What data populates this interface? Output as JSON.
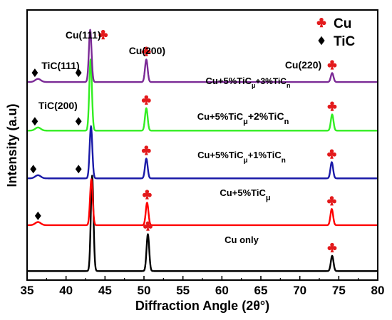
{
  "chart_data": {
    "type": "line",
    "xlabel": "Diffraction Angle (2θ°)",
    "ylabel": "Intensity (a.u)",
    "xlim": [
      35,
      80
    ],
    "x_ticks": [
      35,
      40,
      45,
      50,
      55,
      60,
      65,
      70,
      75,
      80
    ],
    "y_ticks_shown": false,
    "grid": false,
    "legend_position": "top-right",
    "legend": [
      {
        "symbol": "club",
        "label": "Cu",
        "color": "#e31a1c"
      },
      {
        "symbol": "diamond",
        "label": "TiC",
        "color": "#000000"
      }
    ],
    "peak_labels": [
      {
        "text": "Cu(111)",
        "x": 43.3
      },
      {
        "text": "Cu(200)",
        "x": 50.4
      },
      {
        "text": "Cu(220)",
        "x": 74.1
      },
      {
        "text": "TiC(111)",
        "x": 36.0
      },
      {
        "text": "TiC(200)",
        "x": 41.8
      }
    ],
    "series": [
      {
        "name": "Cu only",
        "label_base": "Cu only",
        "label_sub": "",
        "label_tail": "",
        "label_tail_sub": "",
        "color": "#000000",
        "baseline": 1.0,
        "peaks": [
          {
            "x": 43.35,
            "height": 10.6
          },
          {
            "x": 50.5,
            "height": 4.1
          },
          {
            "x": 74.15,
            "height": 1.7
          }
        ],
        "cu_markers": [
          50.5,
          74.15
        ],
        "tic_markers": []
      },
      {
        "name": "Cu+5%TiCμ",
        "label_base": "Cu+5%TiC",
        "label_sub": "μ",
        "label_tail": "",
        "label_tail_sub": "",
        "color": "#ff0000",
        "baseline": 6.1,
        "peaks": [
          {
            "x": 43.25,
            "height": 5.1
          },
          {
            "x": 50.4,
            "height": 2.5
          },
          {
            "x": 74.1,
            "height": 1.8
          }
        ],
        "cu_markers": [
          50.4,
          74.1
        ],
        "tic_markers": [
          36.4
        ]
      },
      {
        "name": "Cu+5%TiCμ+1%TiCn",
        "label_base": "Cu+5%TiC",
        "label_sub": "μ",
        "label_tail": "+1%TiC",
        "label_tail_sub": "n",
        "color": "#1a1aa8",
        "baseline": 11.3,
        "peaks": [
          {
            "x": 43.2,
            "height": 5.8
          },
          {
            "x": 50.3,
            "height": 2.2
          },
          {
            "x": 74.1,
            "height": 1.8
          }
        ],
        "cu_markers": [
          50.3,
          74.1
        ],
        "tic_markers": [
          35.8,
          41.6
        ]
      },
      {
        "name": "Cu+5%TiCμ+2%TiCn",
        "label_base": "Cu+5%TiC",
        "label_sub": "μ",
        "label_tail": "+2%TiC",
        "label_tail_sub": "n",
        "color": "#33ee22",
        "baseline": 16.6,
        "peaks": [
          {
            "x": 43.15,
            "height": 7.9
          },
          {
            "x": 50.3,
            "height": 2.5
          },
          {
            "x": 74.15,
            "height": 1.8
          }
        ],
        "cu_markers": [
          50.3,
          74.15
        ],
        "tic_markers": [
          36.0,
          41.6
        ]
      },
      {
        "name": "Cu+5%TiCμ+3%TiCn",
        "label_base": "Cu+5%TiC",
        "label_sub": "μ",
        "label_tail": "+3%TiC",
        "label_tail_sub": "n",
        "color": "#7b2a96",
        "baseline": 22.0,
        "peaks": [
          {
            "x": 43.1,
            "height": 5.8
          },
          {
            "x": 50.3,
            "height": 2.5
          },
          {
            "x": 74.15,
            "height": 1.0
          }
        ],
        "cu_markers": [
          50.3,
          74.15
        ],
        "tic_markers": [
          36.0,
          41.6
        ]
      }
    ]
  }
}
